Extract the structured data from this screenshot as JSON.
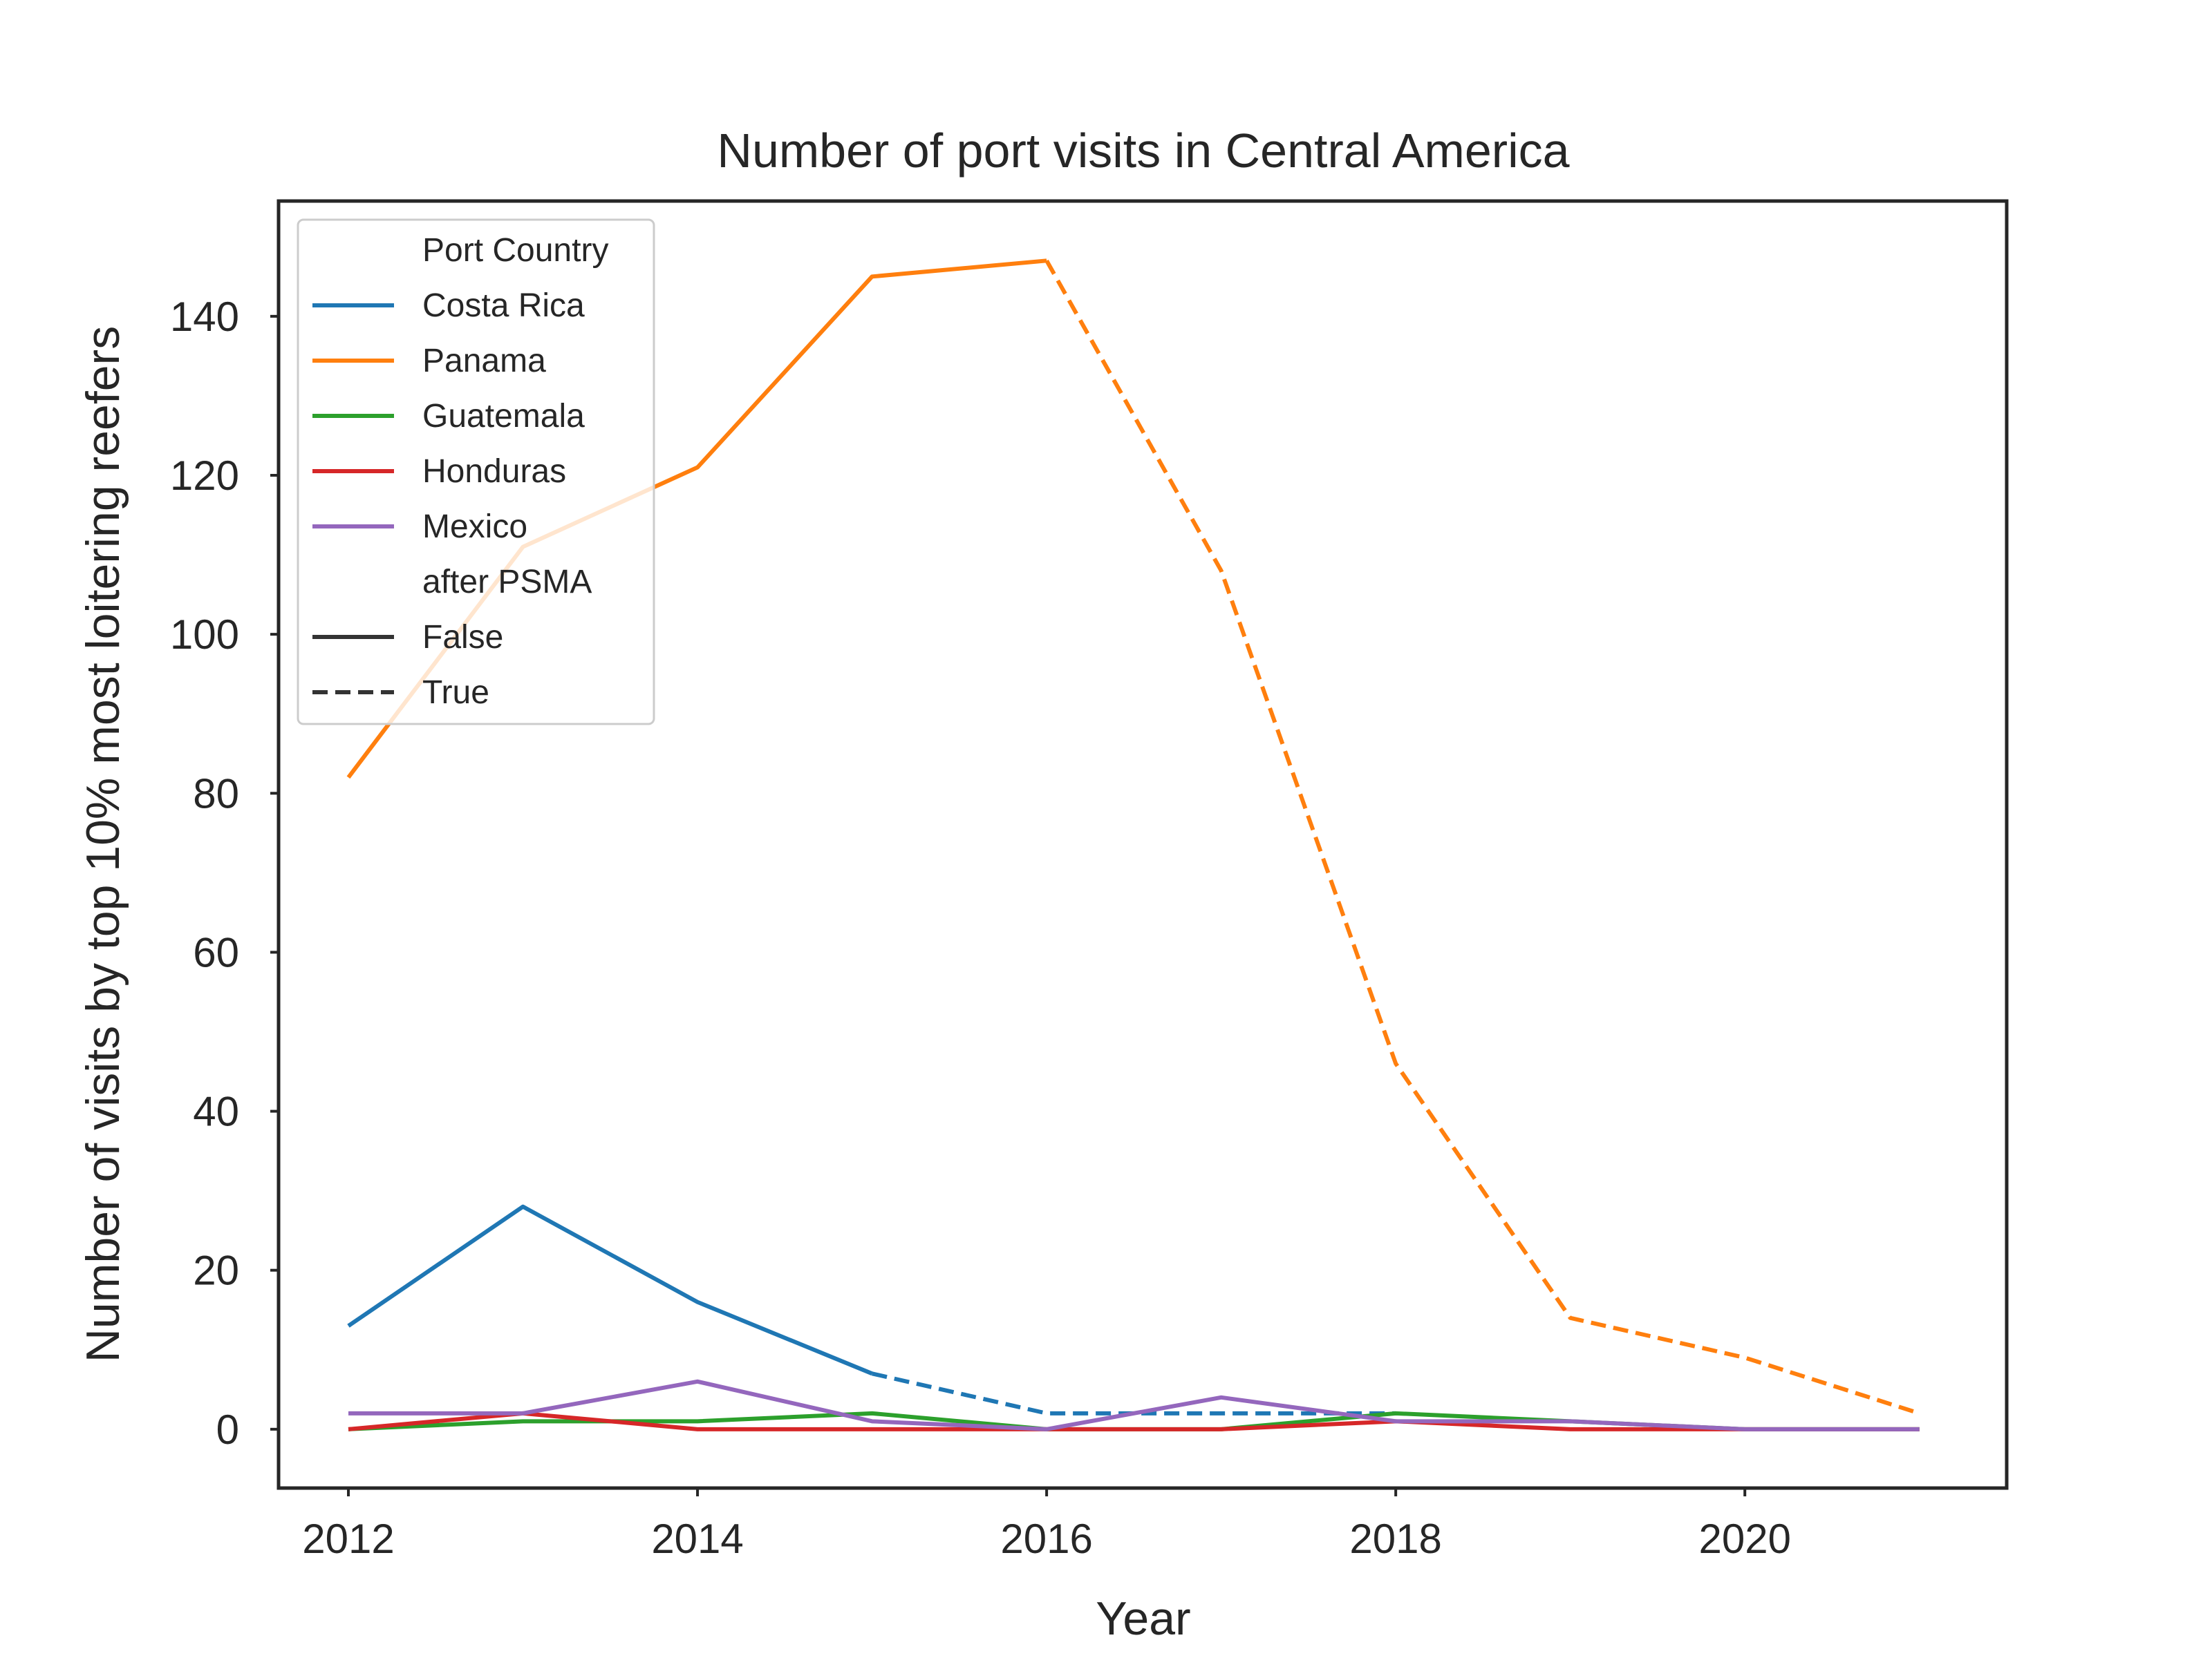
{
  "chart_data": {
    "type": "line",
    "title": "Number of port visits in Central America",
    "xlabel": "Year",
    "ylabel": "Number of visits by top 10% most loitering reefers",
    "xlim": [
      2011.6,
      2021.5
    ],
    "ylim": [
      -7.4,
      154.5
    ],
    "x_ticks": [
      2012,
      2014,
      2016,
      2018,
      2020
    ],
    "y_ticks": [
      0,
      20,
      40,
      60,
      80,
      100,
      120,
      140
    ],
    "grid": false,
    "legend_position": "top-left",
    "legend": {
      "hue_title": "Port Country",
      "style_title": "after PSMA",
      "style_entries": [
        {
          "label": "False",
          "dash": "solid"
        },
        {
          "label": "True",
          "dash": "dashed"
        }
      ]
    },
    "series": [
      {
        "name": "Costa Rica",
        "color": "#1f77b4",
        "segments": [
          {
            "after_psma": "False",
            "points": [
              [
                2012,
                13
              ],
              [
                2013,
                28
              ],
              [
                2014,
                16
              ],
              [
                2015,
                7
              ]
            ]
          },
          {
            "after_psma": "True",
            "points": [
              [
                2015,
                7
              ],
              [
                2016,
                2
              ],
              [
                2017,
                2
              ],
              [
                2018,
                2
              ]
            ]
          }
        ]
      },
      {
        "name": "Panama",
        "color": "#ff7f0e",
        "segments": [
          {
            "after_psma": "False",
            "points": [
              [
                2012,
                82
              ],
              [
                2013,
                111
              ],
              [
                2014,
                121
              ],
              [
                2015,
                145
              ],
              [
                2016,
                147
              ]
            ]
          },
          {
            "after_psma": "True",
            "points": [
              [
                2016,
                147
              ],
              [
                2017,
                108
              ],
              [
                2018,
                46
              ],
              [
                2019,
                14
              ],
              [
                2020,
                9
              ],
              [
                2021,
                2
              ]
            ]
          }
        ]
      },
      {
        "name": "Guatemala",
        "color": "#2ca02c",
        "segments": [
          {
            "after_psma": "False",
            "points": [
              [
                2012,
                0
              ],
              [
                2013,
                1
              ],
              [
                2014,
                1
              ],
              [
                2015,
                2
              ],
              [
                2016,
                0
              ],
              [
                2017,
                0
              ],
              [
                2018,
                2
              ],
              [
                2019,
                1
              ],
              [
                2020,
                0
              ],
              [
                2021,
                0
              ]
            ]
          }
        ]
      },
      {
        "name": "Honduras",
        "color": "#d62728",
        "segments": [
          {
            "after_psma": "False",
            "points": [
              [
                2012,
                0
              ],
              [
                2013,
                2
              ],
              [
                2014,
                0
              ],
              [
                2015,
                0
              ],
              [
                2016,
                0
              ],
              [
                2017,
                0
              ],
              [
                2018,
                1
              ],
              [
                2019,
                0
              ],
              [
                2020,
                0
              ],
              [
                2021,
                0
              ]
            ]
          }
        ]
      },
      {
        "name": "Mexico",
        "color": "#9467bd",
        "segments": [
          {
            "after_psma": "False",
            "points": [
              [
                2012,
                2
              ],
              [
                2013,
                2
              ],
              [
                2014,
                6
              ],
              [
                2015,
                1
              ],
              [
                2016,
                0
              ],
              [
                2017,
                4
              ],
              [
                2018,
                1
              ],
              [
                2019,
                1
              ],
              [
                2020,
                0
              ],
              [
                2021,
                0
              ]
            ]
          }
        ]
      }
    ]
  }
}
